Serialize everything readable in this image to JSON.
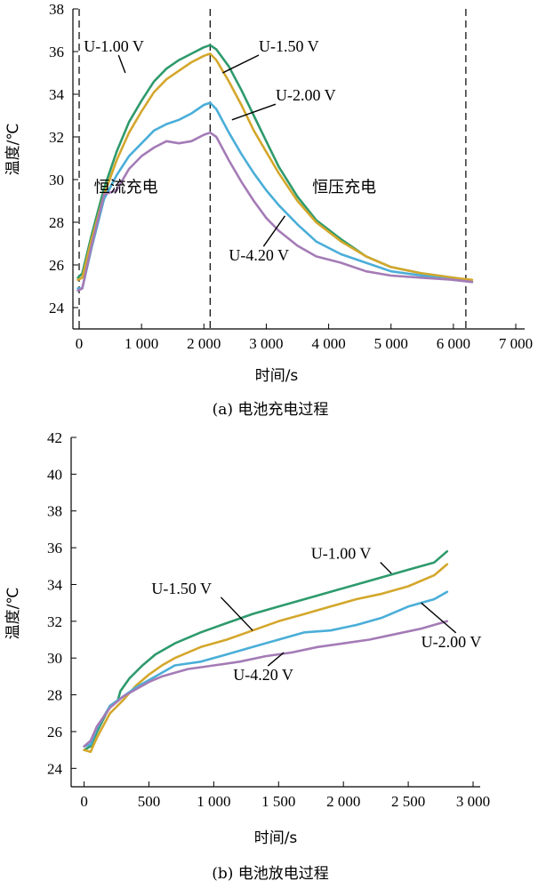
{
  "chart_data": [
    {
      "type": "line",
      "caption": "(a) 电池充电过程",
      "xlabel": "时间/s",
      "ylabel": "温度/℃",
      "xlim": [
        -100,
        7000
      ],
      "ylim": [
        23,
        38
      ],
      "xticks": [
        0,
        1000,
        2000,
        3000,
        4000,
        5000,
        6000,
        7000
      ],
      "xtick_labels": [
        "0",
        "1 000",
        "2 000",
        "3 000",
        "4 000",
        "5 000",
        "6 000",
        "7 000"
      ],
      "yticks": [
        24,
        26,
        28,
        30,
        32,
        34,
        36,
        38
      ],
      "ytick_labels": [
        "24",
        "26",
        "28",
        "30",
        "32",
        "34",
        "36",
        "38"
      ],
      "vlines": [
        0,
        2100,
        6200
      ],
      "region_labels": [
        {
          "text": "恒流充电",
          "x": 750,
          "y": 29.4
        },
        {
          "text": "恒压充电",
          "x": 4250,
          "y": 29.4
        }
      ],
      "series": [
        {
          "name": "U-1.00 V",
          "color": "#2e9a6c",
          "x": [
            -20,
            50,
            200,
            400,
            600,
            800,
            1000,
            1200,
            1400,
            1600,
            1800,
            2000,
            2100,
            2200,
            2400,
            2600,
            2800,
            3000,
            3200,
            3500,
            3800,
            4200,
            4600,
            5000,
            5500,
            6000,
            6300
          ],
          "y": [
            25.4,
            25.6,
            27.4,
            29.6,
            31.3,
            32.7,
            33.7,
            34.6,
            35.2,
            35.6,
            35.9,
            36.2,
            36.3,
            36.1,
            35.3,
            34.2,
            33.0,
            31.8,
            30.6,
            29.2,
            28.1,
            27.2,
            26.4,
            25.9,
            25.6,
            25.4,
            25.2
          ]
        },
        {
          "name": "U-1.50 V",
          "color": "#d4a72c",
          "x": [
            -20,
            50,
            200,
            400,
            600,
            800,
            1000,
            1200,
            1400,
            1600,
            1800,
            2000,
            2100,
            2200,
            2400,
            2600,
            2800,
            3000,
            3200,
            3500,
            3800,
            4200,
            4600,
            5000,
            5500,
            6000,
            6300
          ],
          "y": [
            25.3,
            25.4,
            27.2,
            29.3,
            30.9,
            32.2,
            33.2,
            34.1,
            34.7,
            35.1,
            35.5,
            35.8,
            35.9,
            35.6,
            34.6,
            33.5,
            32.3,
            31.3,
            30.3,
            29.0,
            28.0,
            27.1,
            26.4,
            25.9,
            25.6,
            25.4,
            25.3
          ]
        },
        {
          "name": "U-2.00 V",
          "color": "#4aaed8",
          "x": [
            -20,
            50,
            200,
            400,
            600,
            800,
            1000,
            1200,
            1400,
            1600,
            1800,
            2000,
            2100,
            2200,
            2400,
            2600,
            2800,
            3000,
            3200,
            3500,
            3800,
            4200,
            4600,
            5000,
            5500,
            6000,
            6300
          ],
          "y": [
            24.9,
            24.9,
            26.8,
            29.1,
            30.2,
            31.1,
            31.7,
            32.3,
            32.6,
            32.8,
            33.1,
            33.5,
            33.6,
            33.3,
            32.2,
            31.2,
            30.3,
            29.5,
            28.8,
            27.9,
            27.1,
            26.5,
            26.1,
            25.7,
            25.5,
            25.3,
            25.2
          ]
        },
        {
          "name": "U-4.20 V",
          "color": "#a47bb6",
          "x": [
            -20,
            50,
            200,
            400,
            600,
            800,
            1000,
            1200,
            1400,
            1600,
            1800,
            2000,
            2100,
            2200,
            2400,
            2600,
            2800,
            3000,
            3200,
            3500,
            3800,
            4200,
            4600,
            5000,
            5500,
            6000,
            6300
          ],
          "y": [
            24.8,
            24.9,
            26.9,
            29.3,
            29.5,
            30.5,
            31.1,
            31.5,
            31.8,
            31.7,
            31.8,
            32.1,
            32.2,
            32.0,
            30.9,
            29.9,
            29.0,
            28.2,
            27.6,
            26.9,
            26.4,
            26.1,
            25.7,
            25.5,
            25.4,
            25.3,
            25.2
          ]
        }
      ],
      "annotations": [
        {
          "text": "U-1.00 V",
          "series": "U-1.00 V",
          "at": [
            740,
            35.0
          ],
          "label": [
            75,
            36.0
          ]
        },
        {
          "text": "U-1.50 V",
          "series": "U-1.50 V",
          "at": [
            2300,
            35.0
          ],
          "label": [
            2880,
            36.0
          ]
        },
        {
          "text": "U-2.00 V",
          "series": "U-2.00 V",
          "at": [
            2450,
            32.8
          ],
          "label": [
            3150,
            33.7
          ]
        },
        {
          "text": "U-4.20 V",
          "series": "U-4.20 V",
          "at": [
            3300,
            28.3
          ],
          "label": [
            2400,
            26.2
          ]
        }
      ]
    },
    {
      "type": "line",
      "caption": "(b) 电池放电过程",
      "xlabel": "时间/s",
      "ylabel": "温度/℃",
      "xlim": [
        -100,
        3000
      ],
      "ylim": [
        23,
        42
      ],
      "xticks": [
        0,
        500,
        1000,
        1500,
        2000,
        2500,
        3000
      ],
      "xtick_labels": [
        "0",
        "500",
        "1 000",
        "1 500",
        "2 000",
        "2 500",
        "3 000"
      ],
      "yticks": [
        24,
        26,
        28,
        30,
        32,
        34,
        36,
        38,
        40,
        42
      ],
      "ytick_labels": [
        "24",
        "26",
        "28",
        "30",
        "32",
        "34",
        "36",
        "38",
        "40",
        "42"
      ],
      "series": [
        {
          "name": "U-1.00 V",
          "color": "#2e9a6c",
          "x": [
            0,
            50,
            100,
            200,
            260,
            280,
            350,
            450,
            550,
            700,
            900,
            1100,
            1300,
            1500,
            1700,
            1900,
            2100,
            2300,
            2500,
            2700,
            2800
          ],
          "y": [
            25.0,
            25.2,
            26.0,
            27.4,
            27.7,
            28.2,
            28.9,
            29.6,
            30.2,
            30.8,
            31.4,
            31.9,
            32.4,
            32.8,
            33.2,
            33.6,
            34.0,
            34.4,
            34.8,
            35.2,
            35.8
          ]
        },
        {
          "name": "U-1.50 V",
          "color": "#d4a72c",
          "x": [
            0,
            50,
            100,
            200,
            300,
            400,
            500,
            600,
            700,
            900,
            1100,
            1300,
            1500,
            1700,
            1900,
            2100,
            2300,
            2500,
            2700,
            2800
          ],
          "y": [
            25.0,
            24.9,
            25.7,
            27.0,
            27.7,
            28.5,
            29.1,
            29.6,
            30.0,
            30.6,
            31.0,
            31.5,
            32.0,
            32.4,
            32.8,
            33.2,
            33.5,
            33.9,
            34.5,
            35.1
          ]
        },
        {
          "name": "U-2.00 V",
          "color": "#4aaed8",
          "x": [
            0,
            50,
            100,
            200,
            300,
            400,
            500,
            600,
            700,
            800,
            900,
            1100,
            1300,
            1500,
            1700,
            1900,
            2100,
            2300,
            2500,
            2700,
            2800
          ],
          "y": [
            25.2,
            25.3,
            26.2,
            27.4,
            27.9,
            28.4,
            28.8,
            29.2,
            29.6,
            29.7,
            29.8,
            30.2,
            30.6,
            31.0,
            31.4,
            31.5,
            31.8,
            32.2,
            32.8,
            33.2,
            33.6
          ]
        },
        {
          "name": "U-4.20 V",
          "color": "#a47bb6",
          "x": [
            0,
            50,
            100,
            200,
            300,
            400,
            500,
            600,
            700,
            800,
            1000,
            1200,
            1400,
            1600,
            1800,
            2000,
            2200,
            2400,
            2600,
            2800
          ],
          "y": [
            25.2,
            25.5,
            26.3,
            27.3,
            27.9,
            28.3,
            28.7,
            29.0,
            29.2,
            29.4,
            29.6,
            29.8,
            30.1,
            30.3,
            30.6,
            30.8,
            31.0,
            31.3,
            31.6,
            32.0
          ]
        }
      ],
      "annotations": [
        {
          "text": "U-1.00 V",
          "series": "U-1.00 V",
          "at": [
            2370,
            34.6
          ],
          "label": [
            1750,
            35.4
          ]
        },
        {
          "text": "U-1.50 V",
          "series": "U-1.50 V",
          "at": [
            1300,
            31.5
          ],
          "label": [
            520,
            33.5
          ]
        },
        {
          "text": "U-2.00 V",
          "series": "U-2.00 V",
          "at": [
            2600,
            33.0
          ],
          "label": [
            2600,
            30.6
          ]
        },
        {
          "text": "U-4.20 V",
          "series": "U-4.20 V",
          "at": [
            1540,
            30.3
          ],
          "label": [
            1150,
            28.8
          ]
        }
      ]
    }
  ]
}
